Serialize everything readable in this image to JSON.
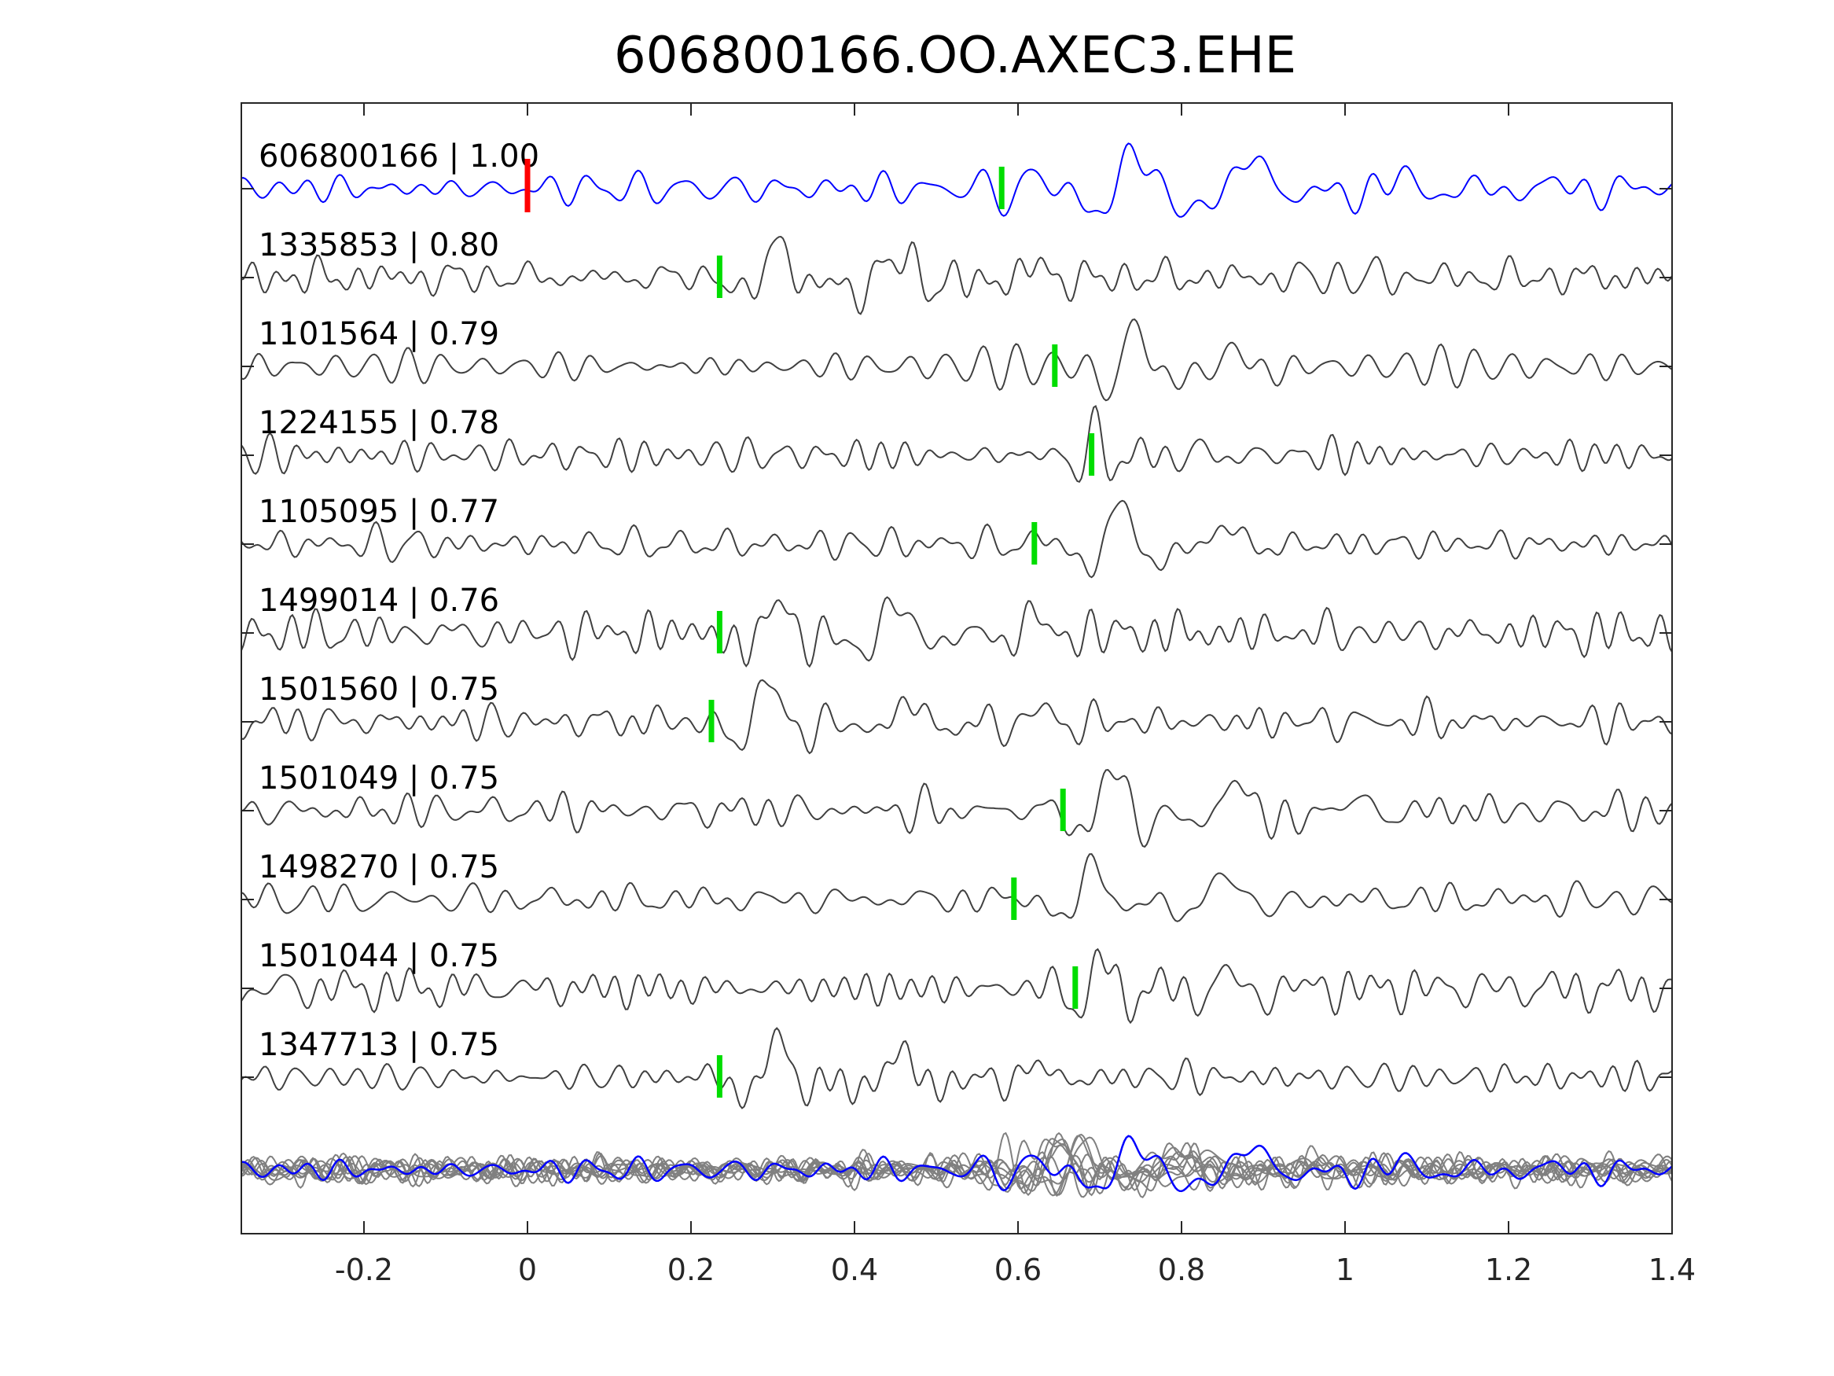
{
  "chart_data": {
    "type": "line",
    "title": "606800166.OO.AXEC3.EHE",
    "xlabel": "",
    "ylabel": "",
    "xlim": [
      -0.35,
      1.4
    ],
    "x_ticks": [
      -0.2,
      0,
      0.2,
      0.4,
      0.6,
      0.8,
      1,
      1.2,
      1.4
    ],
    "x_tick_labels": [
      "-0.2",
      "0",
      "0.2",
      "0.4",
      "0.6",
      "0.8",
      "1",
      "1.2",
      "1.4"
    ],
    "grid": false,
    "reference_pick_time": 0.0,
    "series": [
      {
        "label": "606800166 | 1.00",
        "pick": 0.58,
        "color": "#0000ff",
        "amp": 0.55,
        "events": [
          {
            "t": 0.62,
            "a": 0.35,
            "f": 14,
            "d": 0.05
          },
          {
            "t": 0.74,
            "a": 0.8,
            "f": 9,
            "d": 0.07
          },
          {
            "t": 0.88,
            "a": 0.7,
            "f": 8,
            "d": 0.06
          },
          {
            "t": 1.06,
            "a": 0.3,
            "f": 9,
            "d": 0.08
          },
          {
            "t": 1.25,
            "a": 0.2,
            "f": 10,
            "d": 0.1
          }
        ]
      },
      {
        "label": "1335853 | 0.80",
        "pick": 0.235,
        "color": "#404040",
        "amp": 0.8,
        "events": [
          {
            "t": 0.3,
            "a": 0.85,
            "f": 11,
            "d": 0.05
          },
          {
            "t": 0.45,
            "a": 0.5,
            "f": 9,
            "d": 0.07
          },
          {
            "t": 0.62,
            "a": 0.3,
            "f": 10,
            "d": 0.05
          }
        ]
      },
      {
        "label": "1101564 | 0.79",
        "pick": 0.645,
        "color": "#404040",
        "amp": 0.8,
        "events": [
          {
            "t": 0.74,
            "a": 0.9,
            "f": 12,
            "d": 0.045
          },
          {
            "t": 0.86,
            "a": 0.35,
            "f": 10,
            "d": 0.06
          }
        ]
      },
      {
        "label": "1224155 | 0.78",
        "pick": 0.69,
        "color": "#404040",
        "amp": 0.8,
        "events": [
          {
            "t": 0.69,
            "a": 0.65,
            "f": 18,
            "d": 0.04
          },
          {
            "t": 0.82,
            "a": 0.3,
            "f": 16,
            "d": 0.05
          }
        ]
      },
      {
        "label": "1105095 | 0.77",
        "pick": 0.62,
        "color": "#404040",
        "amp": 0.8,
        "events": [
          {
            "t": 0.72,
            "a": 0.9,
            "f": 11,
            "d": 0.06
          },
          {
            "t": 0.85,
            "a": 0.4,
            "f": 9,
            "d": 0.05
          }
        ]
      },
      {
        "label": "1499014 | 0.76",
        "pick": 0.235,
        "color": "#404040",
        "amp": 0.8,
        "events": [
          {
            "t": 0.3,
            "a": 0.85,
            "f": 11,
            "d": 0.05
          },
          {
            "t": 0.45,
            "a": 0.55,
            "f": 9,
            "d": 0.07
          },
          {
            "t": 0.62,
            "a": 0.3,
            "f": 10,
            "d": 0.05
          }
        ]
      },
      {
        "label": "1501560 | 0.75",
        "pick": 0.225,
        "color": "#404040",
        "amp": 0.8,
        "events": [
          {
            "t": 0.29,
            "a": 0.85,
            "f": 10,
            "d": 0.05
          },
          {
            "t": 0.46,
            "a": 0.4,
            "f": 9,
            "d": 0.06
          },
          {
            "t": 0.62,
            "a": 0.25,
            "f": 10,
            "d": 0.05
          }
        ]
      },
      {
        "label": "1501049 | 0.75",
        "pick": 0.655,
        "color": "#404040",
        "amp": 0.8,
        "events": [
          {
            "t": 0.71,
            "a": 0.9,
            "f": 11,
            "d": 0.05
          },
          {
            "t": 0.86,
            "a": 0.5,
            "f": 8,
            "d": 0.07
          },
          {
            "t": 1.0,
            "a": 0.25,
            "f": 9,
            "d": 0.06
          }
        ]
      },
      {
        "label": "1498270 | 0.75",
        "pick": 0.595,
        "color": "#404040",
        "amp": 0.8,
        "events": [
          {
            "t": 0.69,
            "a": 0.85,
            "f": 11,
            "d": 0.05
          },
          {
            "t": 0.85,
            "a": 0.45,
            "f": 8,
            "d": 0.07
          }
        ]
      },
      {
        "label": "1501044 | 0.75",
        "pick": 0.67,
        "color": "#404040",
        "amp": 0.8,
        "events": [
          {
            "t": 0.7,
            "a": 0.8,
            "f": 14,
            "d": 0.05
          },
          {
            "t": 0.85,
            "a": 0.45,
            "f": 12,
            "d": 0.07
          }
        ]
      },
      {
        "label": "1347713 | 0.75",
        "pick": 0.235,
        "color": "#404040",
        "amp": 0.8,
        "events": [
          {
            "t": 0.3,
            "a": 0.85,
            "f": 11,
            "d": 0.05
          },
          {
            "t": 0.45,
            "a": 0.5,
            "f": 9,
            "d": 0.07
          },
          {
            "t": 0.62,
            "a": 0.3,
            "f": 10,
            "d": 0.05
          }
        ]
      }
    ],
    "stack": {
      "colors": {
        "aligned": "#808080",
        "master": "#0000ff"
      }
    }
  },
  "colors": {
    "master_trace": "#0000ff",
    "neighbor_trace": "#404040",
    "stack_trace": "#808080",
    "reference_pick": "#ff0000",
    "pick_marker": "#00dd00",
    "axis": "#262626"
  }
}
